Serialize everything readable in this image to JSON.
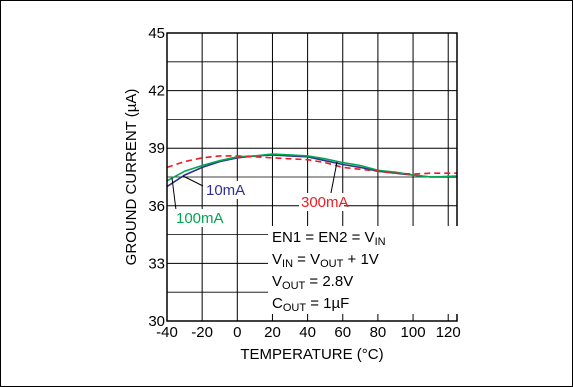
{
  "chart_data": {
    "type": "line",
    "title": "",
    "xlabel": "TEMPERATURE (°C)",
    "ylabel": "GROUND CURRENT (µA)",
    "xlim": [
      -40,
      125
    ],
    "ylim": [
      30,
      45
    ],
    "xticks": [
      -40,
      -20,
      0,
      20,
      40,
      60,
      80,
      100,
      120
    ],
    "yticks": [
      30,
      33,
      36,
      39,
      42,
      45
    ],
    "grid": true,
    "series": [
      {
        "name": "10mA",
        "color": "#2e3192",
        "dash": "solid",
        "x": [
          -40,
          -30,
          -20,
          -10,
          0,
          10,
          20,
          30,
          40,
          50,
          60,
          70,
          80,
          90,
          100,
          110,
          125
        ],
        "y": [
          37.0,
          37.6,
          38.0,
          38.3,
          38.5,
          38.6,
          38.65,
          38.6,
          38.55,
          38.35,
          38.15,
          38.0,
          37.8,
          37.7,
          37.6,
          37.5,
          37.5
        ]
      },
      {
        "name": "100mA",
        "color": "#00a651",
        "dash": "solid",
        "x": [
          -40,
          -30,
          -20,
          -10,
          0,
          10,
          20,
          30,
          40,
          50,
          60,
          70,
          80,
          90,
          100,
          110,
          125
        ],
        "y": [
          37.3,
          37.8,
          38.1,
          38.35,
          38.55,
          38.6,
          38.7,
          38.65,
          38.6,
          38.45,
          38.25,
          38.1,
          37.85,
          37.75,
          37.6,
          37.5,
          37.55
        ]
      },
      {
        "name": "300mA",
        "color": "#ed1c24",
        "dash": "dashed",
        "x": [
          -40,
          -30,
          -20,
          -10,
          0,
          10,
          20,
          30,
          40,
          50,
          60,
          70,
          80,
          90,
          100,
          110,
          125
        ],
        "y": [
          38.0,
          38.3,
          38.5,
          38.6,
          38.6,
          38.55,
          38.5,
          38.45,
          38.4,
          38.25,
          38.0,
          37.9,
          37.8,
          37.7,
          37.65,
          37.7,
          37.7
        ]
      }
    ],
    "series_labels": [
      {
        "text": "10mA",
        "color": "#2e3192"
      },
      {
        "text": "100mA",
        "color": "#00a651"
      },
      {
        "text": "300mA",
        "color": "#ed1c24"
      }
    ],
    "conditions": [
      {
        "main": "EN1 = EN2 = V",
        "sub": "IN",
        "tail": ""
      },
      {
        "main": "V",
        "sub": "IN",
        "tail": " = V",
        "sub2": "OUT",
        "tail2": " + 1V"
      },
      {
        "main": "V",
        "sub": "OUT",
        "tail": " = 2.8V"
      },
      {
        "main": "C",
        "sub": "OUT",
        "tail": " = 1µF"
      }
    ]
  }
}
